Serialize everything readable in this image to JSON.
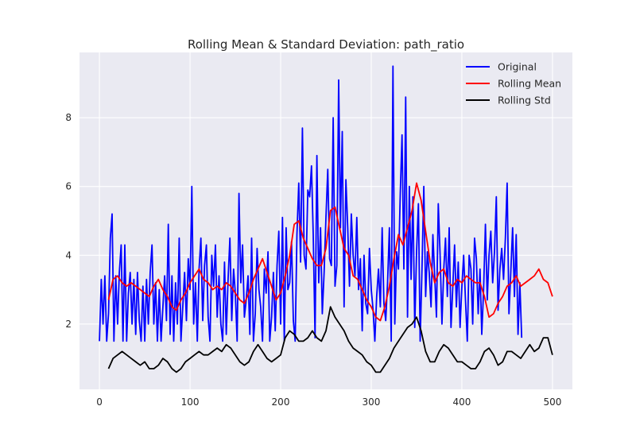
{
  "chart_data": {
    "type": "line",
    "title": "Rolling Mean & Standard Deviation: path_ratio",
    "xlabel": "",
    "ylabel": "",
    "xlim": [
      -22,
      522
    ],
    "ylim": [
      0.1,
      9.9
    ],
    "xticks": [
      0,
      100,
      200,
      300,
      400,
      500
    ],
    "yticks": [
      2,
      4,
      6,
      8
    ],
    "grid": true,
    "legend_position": "top-right",
    "background": "#EAEAF2",
    "series": [
      {
        "name": "Original",
        "color": "#0000ff",
        "x_start": 0,
        "x_step": 2,
        "values": [
          1.5,
          3.3,
          2.0,
          3.4,
          1.5,
          2.3,
          4.5,
          5.2,
          1.5,
          3.4,
          2.0,
          3.5,
          4.3,
          1.5,
          4.3,
          1.5,
          2.9,
          3.5,
          2.0,
          3.3,
          1.7,
          3.5,
          2.1,
          1.5,
          3.1,
          1.5,
          3.3,
          2.0,
          3.5,
          4.3,
          2.0,
          3.2,
          1.5,
          3.0,
          1.5,
          2.5,
          3.4,
          2.1,
          4.9,
          1.7,
          3.4,
          1.5,
          3.2,
          2.0,
          4.5,
          1.5,
          2.5,
          3.5,
          2.1,
          3.9,
          3.0,
          6.0,
          2.0,
          3.2,
          1.5,
          3.6,
          4.5,
          2.1,
          3.7,
          4.3,
          2.2,
          1.5,
          4.0,
          3.1,
          4.3,
          2.2,
          3.4,
          2.0,
          1.5,
          3.8,
          1.7,
          3.3,
          4.5,
          2.1,
          3.6,
          2.9,
          1.5,
          5.8,
          3.2,
          4.3,
          2.2,
          2.7,
          3.4,
          1.7,
          4.5,
          1.5,
          2.3,
          4.2,
          3.0,
          2.5,
          1.5,
          3.6,
          2.9,
          4.1,
          1.5,
          2.2,
          3.5,
          1.8,
          3.7,
          4.7,
          2.0,
          5.1,
          1.5,
          4.8,
          3.0,
          3.2,
          4.4,
          2.1,
          1.5,
          4.6,
          6.1,
          3.8,
          7.7,
          4.0,
          3.6,
          5.9,
          5.7,
          6.6,
          4.6,
          1.6,
          6.9,
          3.2,
          4.8,
          2.3,
          3.5,
          5.1,
          6.5,
          3.9,
          3.7,
          8.0,
          3.1,
          3.7,
          9.1,
          4.8,
          7.6,
          2.5,
          6.2,
          4.8,
          3.1,
          5.2,
          4.0,
          3.4,
          5.1,
          3.0,
          3.9,
          1.8,
          4.0,
          2.6,
          2.3,
          4.2,
          3.0,
          2.4,
          1.5,
          2.8,
          3.6,
          2.5,
          4.8,
          2.6,
          2.1,
          3.2,
          4.8,
          1.5,
          9.5,
          2.0,
          4.1,
          3.6,
          5.8,
          7.5,
          3.6,
          8.6,
          2.2,
          6.0,
          3.3,
          5.7,
          1.9,
          4.1,
          5.5,
          1.5,
          3.6,
          6.0,
          2.8,
          4.1,
          3.5,
          2.5,
          4.6,
          3.4,
          2.2,
          5.5,
          4.0,
          2.0,
          3.6,
          4.5,
          2.8,
          4.8,
          1.9,
          3.1,
          4.3,
          2.5,
          3.8,
          1.9,
          3.1,
          4.0,
          2.7,
          1.5,
          4.0,
          3.6,
          2.0,
          4.5,
          3.9,
          2.3,
          3.6,
          1.7,
          3.0,
          4.9,
          2.7,
          4.0,
          4.7,
          3.2,
          4.1,
          5.7,
          2.4,
          3.6,
          4.2,
          3.3,
          4.5,
          6.1,
          2.3,
          3.5,
          4.8,
          2.8,
          4.6,
          1.7,
          3.2,
          1.6
        ]
      },
      {
        "name": "Rolling Mean",
        "color": "#ff0000",
        "x_start": 10,
        "x_step": 5,
        "values": [
          2.7,
          3.3,
          3.4,
          3.2,
          3.1,
          3.2,
          3.1,
          3.0,
          2.9,
          2.8,
          3.1,
          3.3,
          3.0,
          2.8,
          2.5,
          2.4,
          2.7,
          2.9,
          3.2,
          3.4,
          3.6,
          3.3,
          3.2,
          3.0,
          3.1,
          3.0,
          3.2,
          3.1,
          2.9,
          2.7,
          2.6,
          2.9,
          3.3,
          3.6,
          3.9,
          3.5,
          3.1,
          2.7,
          2.9,
          3.4,
          4.0,
          4.9,
          5.0,
          4.5,
          4.2,
          3.9,
          3.7,
          3.7,
          4.2,
          5.3,
          5.4,
          4.8,
          4.2,
          4.0,
          3.4,
          3.3,
          3.0,
          2.7,
          2.5,
          2.2,
          2.1,
          2.5,
          3.1,
          3.9,
          4.6,
          4.3,
          4.8,
          5.3,
          6.1,
          5.6,
          4.7,
          3.8,
          3.2,
          3.5,
          3.6,
          3.2,
          3.1,
          3.3,
          3.2,
          3.4,
          3.3,
          3.2,
          3.2,
          2.8,
          2.2,
          2.3,
          2.6,
          2.8,
          3.1,
          3.2,
          3.4,
          3.1,
          3.2,
          3.3,
          3.4,
          3.6,
          3.3,
          3.2,
          2.8
        ]
      },
      {
        "name": "Rolling Std",
        "color": "#000000",
        "x_start": 10,
        "x_step": 5,
        "values": [
          0.7,
          1.0,
          1.1,
          1.2,
          1.1,
          1.0,
          0.9,
          0.8,
          0.9,
          0.7,
          0.7,
          0.8,
          1.0,
          0.9,
          0.7,
          0.6,
          0.7,
          0.9,
          1.0,
          1.1,
          1.2,
          1.1,
          1.1,
          1.2,
          1.3,
          1.2,
          1.4,
          1.3,
          1.1,
          0.9,
          0.8,
          0.9,
          1.2,
          1.4,
          1.2,
          1.0,
          0.9,
          1.0,
          1.1,
          1.6,
          1.8,
          1.7,
          1.5,
          1.5,
          1.6,
          1.8,
          1.6,
          1.5,
          1.8,
          2.5,
          2.2,
          2.0,
          1.8,
          1.5,
          1.3,
          1.2,
          1.1,
          0.9,
          0.8,
          0.6,
          0.6,
          0.8,
          1.0,
          1.3,
          1.5,
          1.7,
          1.9,
          2.0,
          2.2,
          1.8,
          1.2,
          0.9,
          0.9,
          1.2,
          1.4,
          1.3,
          1.1,
          0.9,
          0.9,
          0.8,
          0.7,
          0.7,
          0.9,
          1.2,
          1.3,
          1.1,
          0.8,
          0.9,
          1.2,
          1.2,
          1.1,
          1.0,
          1.2,
          1.4,
          1.2,
          1.3,
          1.6,
          1.6,
          1.1
        ]
      }
    ]
  }
}
